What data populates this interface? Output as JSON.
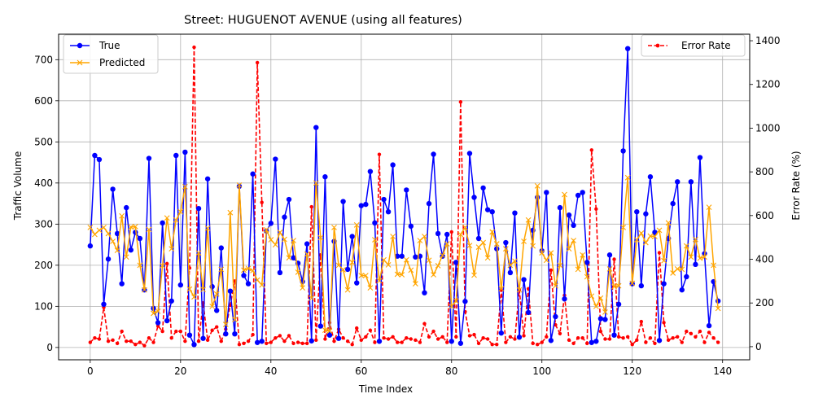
{
  "chart_data": {
    "type": "line",
    "title": "Street: HUGUENOT AVENUE (using all features)",
    "xlabel": "Time Index",
    "ylabel": "Traffic Volume",
    "y2label": "Error Rate (%)",
    "xlim": [
      -7,
      146
    ],
    "ylim": [
      -30,
      762
    ],
    "y2lim": [
      -60,
      1430
    ],
    "xticks": [
      0,
      20,
      40,
      60,
      80,
      100,
      120,
      140
    ],
    "yticks": [
      0,
      100,
      200,
      300,
      400,
      500,
      600,
      700
    ],
    "y2ticks": [
      0,
      200,
      400,
      600,
      800,
      1000,
      1200,
      1400
    ],
    "grid": true,
    "legend_left": "upper-left",
    "legend_right": "upper-right",
    "colors": {
      "true": "#0000ff",
      "predicted": "#ffa500",
      "error": "#ff0000"
    },
    "series": [
      {
        "name": "True",
        "axis": "left",
        "values": [
          247,
          467,
          457,
          105,
          215,
          385,
          277,
          155,
          340,
          237,
          280,
          265,
          140,
          460,
          95,
          60,
          303,
          65,
          113,
          467,
          152,
          475,
          30,
          7,
          338,
          22,
          410,
          148,
          90,
          242,
          33,
          137,
          33,
          392,
          175,
          155,
          422,
          12,
          15,
          283,
          302,
          458,
          182,
          317,
          360,
          218,
          205,
          160,
          252,
          16,
          535,
          52,
          415,
          30,
          258,
          22,
          355,
          190,
          270,
          157,
          345,
          348,
          428,
          303,
          15,
          360,
          330,
          444,
          222,
          222,
          383,
          295,
          220,
          222,
          133,
          350,
          470,
          277,
          222,
          275,
          15,
          207,
          10,
          112,
          472,
          365,
          265,
          388,
          335,
          330,
          240,
          35,
          255,
          182,
          327,
          25,
          165,
          85,
          285,
          365,
          235,
          377,
          17,
          75,
          340,
          118,
          322,
          297,
          370,
          377,
          207,
          12,
          15,
          70,
          68,
          225,
          30,
          105,
          478,
          727,
          155,
          330,
          150,
          325,
          415,
          280,
          17,
          155,
          265,
          350,
          403,
          140,
          172,
          403,
          202,
          462,
          228,
          53,
          160,
          113
        ]
      },
      {
        "name": "Predicted",
        "axis": "left",
        "values": [
          292,
          275,
          285,
          292,
          277,
          258,
          236,
          320,
          220,
          293,
          294,
          200,
          140,
          287,
          83,
          88,
          199,
          315,
          240,
          310,
          330,
          391,
          142,
          123,
          230,
          141,
          290,
          100,
          130,
          190,
          56,
          328,
          68,
          395,
          188,
          192,
          187,
          164,
          152,
          286,
          262,
          250,
          280,
          263,
          218,
          260,
          183,
          145,
          227,
          120,
          400,
          267,
          42,
          40,
          292,
          200,
          189,
          140,
          207,
          298,
          175,
          175,
          145,
          262,
          162,
          213,
          201,
          270,
          178,
          177,
          213,
          188,
          155,
          260,
          270,
          212,
          177,
          199,
          224,
          252,
          100,
          113,
          275,
          292,
          248,
          176,
          244,
          255,
          218,
          281,
          252,
          143,
          240,
          200,
          210,
          140,
          258,
          310,
          247,
          393,
          230,
          212,
          230,
          150,
          200,
          372,
          240,
          260,
          190,
          225,
          172,
          125,
          100,
          120,
          86,
          191,
          148,
          150,
          292,
          413,
          156,
          262,
          278,
          255,
          271,
          270,
          285,
          211,
          303,
          181,
          191,
          190,
          247,
          220,
          263,
          217,
          220,
          341,
          200,
          95
        ]
      },
      {
        "name": "Error Rate",
        "axis": "right",
        "values": [
          20,
          40,
          35,
          180,
          25,
          30,
          15,
          70,
          25,
          25,
          10,
          20,
          5,
          40,
          20,
          95,
          70,
          380,
          40,
          70,
          70,
          25,
          360,
          1370,
          25,
          200,
          30,
          75,
          90,
          25,
          80,
          190,
          300,
          10,
          15,
          25,
          55,
          1300,
          660,
          15,
          20,
          40,
          50,
          25,
          50,
          15,
          20,
          15,
          15,
          640,
          30,
          420,
          35,
          110,
          25,
          80,
          40,
          25,
          10,
          85,
          30,
          45,
          75,
          20,
          880,
          40,
          35,
          45,
          20,
          20,
          40,
          35,
          30,
          20,
          105,
          45,
          70,
          35,
          45,
          20,
          525,
          45,
          1120,
          160,
          50,
          55,
          15,
          40,
          35,
          10,
          10,
          260,
          20,
          45,
          35,
          260,
          50,
          265,
          15,
          10,
          20,
          45,
          350,
          100,
          60,
          235,
          30,
          15,
          40,
          40,
          15,
          900,
          630,
          70,
          35,
          35,
          400,
          45,
          40,
          45,
          10,
          30,
          115,
          20,
          40,
          15,
          430,
          110,
          30,
          40,
          45,
          20,
          70,
          60,
          45,
          70,
          20,
          65,
          40,
          20
        ]
      }
    ]
  }
}
